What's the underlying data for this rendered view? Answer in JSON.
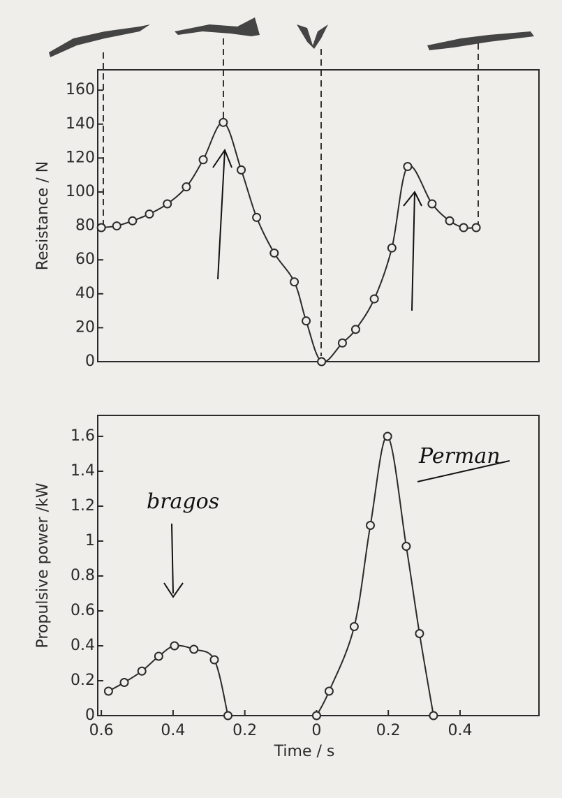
{
  "chart_data": [
    {
      "type": "line",
      "ylabel": "Resistance / N",
      "xlim": [
        -0.61,
        0.62
      ],
      "ylim": [
        0,
        172
      ],
      "yticks": [
        0,
        20,
        40,
        60,
        80,
        100,
        120,
        140,
        160
      ],
      "series": [
        {
          "color": "#2a2a2a",
          "x": [
            -0.6,
            -0.557,
            -0.513,
            -0.466,
            -0.416,
            -0.363,
            -0.316,
            -0.26,
            -0.21,
            -0.167,
            -0.118,
            -0.062,
            -0.029,
            0.014,
            0.072,
            0.109,
            0.161,
            0.21,
            0.254,
            0.322,
            0.371,
            0.41,
            0.445
          ],
          "values": [
            79,
            80,
            83,
            87,
            93,
            103,
            119,
            141,
            113,
            85,
            64,
            47,
            24,
            0,
            11,
            19,
            37,
            67,
            115,
            93,
            83,
            79,
            79
          ]
        }
      ]
    },
    {
      "type": "line",
      "ylabel": "Propulsive power /kW",
      "xlabel": "Time / s",
      "xlim": [
        -0.61,
        0.62
      ],
      "ylim": [
        0,
        1.72
      ],
      "yticks": [
        0,
        0.2,
        0.4,
        0.6,
        0.8,
        1.0,
        1.2,
        1.4,
        1.6
      ],
      "xticks": [
        {
          "value": -0.6,
          "label": "0.6"
        },
        {
          "value": -0.4,
          "label": "0.4"
        },
        {
          "value": -0.2,
          "label": "0.2"
        },
        0,
        0.2,
        0.4
      ],
      "annotations": [
        "bragos",
        "Perman"
      ],
      "series": [
        {
          "color": "#2a2a2a",
          "x": [
            -0.58,
            -0.536,
            -0.487,
            -0.44,
            -0.396,
            -0.342,
            -0.285,
            -0.247
          ],
          "values": [
            0.14,
            0.19,
            0.255,
            0.34,
            0.4,
            0.38,
            0.32,
            0
          ]
        },
        {
          "color": "#2a2a2a",
          "x": [
            0,
            0.035,
            0.105,
            0.15,
            0.198,
            0.25,
            0.287,
            0.326
          ],
          "values": [
            0,
            0.14,
            0.51,
            1.09,
            1.6,
            0.97,
            0.47,
            0
          ]
        }
      ]
    }
  ]
}
